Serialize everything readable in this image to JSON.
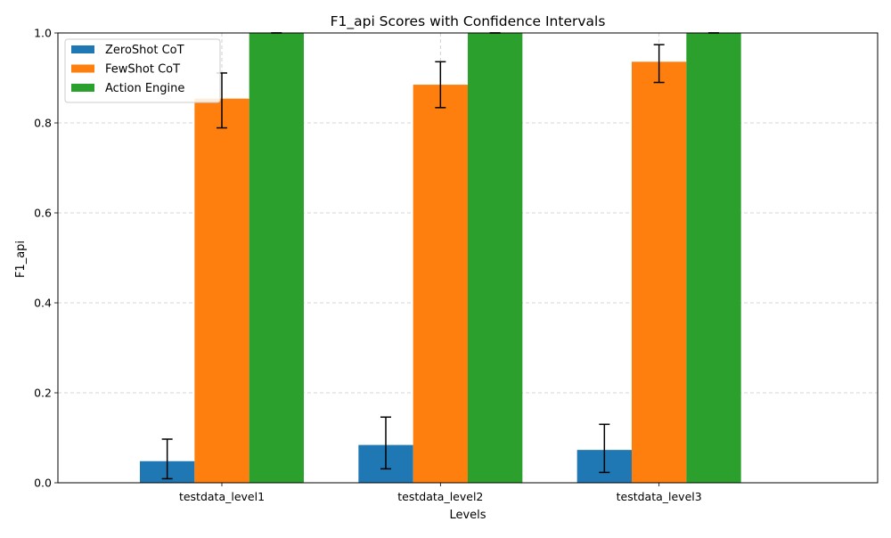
{
  "chart_data": {
    "type": "bar",
    "title": "F1_api Scores with Confidence Intervals",
    "xlabel": "Levels",
    "ylabel": "F1_api",
    "ylim": [
      0,
      1.0
    ],
    "yticks": [
      "0.0",
      "0.2",
      "0.4",
      "0.6",
      "0.8",
      "1.0"
    ],
    "grid": true,
    "legend_position": "top-left",
    "categories": [
      "testdata_level1",
      "testdata_level2",
      "testdata_level3"
    ],
    "series": [
      {
        "name": "ZeroShot CoT",
        "color": "#1f77b4",
        "values": [
          0.048,
          0.084,
          0.073
        ],
        "ci_low": [
          0.009,
          0.031,
          0.023
        ],
        "ci_high": [
          0.097,
          0.146,
          0.13
        ]
      },
      {
        "name": "FewShot CoT",
        "color": "#ff7f0e",
        "values": [
          0.854,
          0.885,
          0.936
        ],
        "ci_low": [
          0.789,
          0.834,
          0.89
        ],
        "ci_high": [
          0.911,
          0.936,
          0.974
        ]
      },
      {
        "name": "Action Engine",
        "color": "#2ca02c",
        "values": [
          1.0,
          1.0,
          1.0
        ],
        "ci_low": [
          1.0,
          1.0,
          1.0
        ],
        "ci_high": [
          1.0,
          1.0,
          1.0
        ]
      }
    ]
  }
}
